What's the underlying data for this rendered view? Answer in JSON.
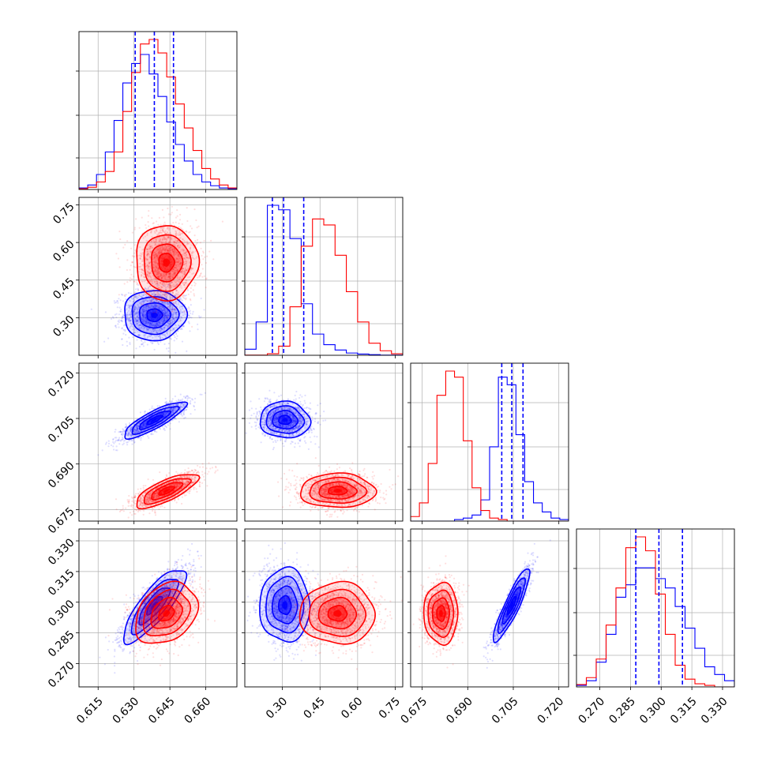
{
  "chart_data": {
    "type": "corner",
    "parameters": [
      {
        "id": "p0",
        "range": [
          0.607,
          0.673
        ],
        "ticks": [
          "0.615",
          "0.630",
          "0.645",
          "0.660"
        ],
        "quantiles_blue": [
          0.6305,
          0.6385,
          0.6465
        ],
        "hist_blue": [
          0.01,
          0.03,
          0.1,
          0.25,
          0.46,
          0.71,
          0.84,
          0.9,
          0.77,
          0.62,
          0.45,
          0.3,
          0.19,
          0.1,
          0.05,
          0.025,
          0.01,
          0.005
        ],
        "hist_red": [
          0.005,
          0.015,
          0.05,
          0.12,
          0.25,
          0.52,
          0.78,
          0.97,
          1.0,
          0.91,
          0.75,
          0.57,
          0.41,
          0.26,
          0.14,
          0.07,
          0.03,
          0.01
        ]
      },
      {
        "id": "p1",
        "range": [
          0.15,
          0.78
        ],
        "ticks": [
          "0.30",
          "0.45",
          "0.60",
          "0.75"
        ],
        "quantiles_blue": [
          0.26,
          0.305,
          0.385
        ],
        "hist_blue": [
          0.04,
          0.22,
          0.99,
          0.96,
          0.77,
          0.34,
          0.14,
          0.07,
          0.035,
          0.015,
          0.008,
          0.004,
          0.001,
          0.001
        ],
        "hist_red": [
          0.001,
          0.001,
          0.01,
          0.06,
          0.32,
          0.72,
          0.9,
          0.86,
          0.66,
          0.42,
          0.22,
          0.08,
          0.03,
          0.01
        ]
      },
      {
        "id": "p2",
        "range": [
          0.6712,
          0.7232
        ],
        "ticks": [
          "0.675",
          "0.690",
          "0.705",
          "0.720"
        ],
        "quantiles_blue": [
          0.7012,
          0.7045,
          0.7082
        ],
        "hist_blue": [
          0.0,
          0.0,
          0.0,
          0.0,
          0.0,
          0.01,
          0.02,
          0.04,
          0.14,
          0.49,
          0.95,
          0.9,
          0.57,
          0.26,
          0.12,
          0.06,
          0.02,
          0.01
        ],
        "hist_red": [
          0.03,
          0.12,
          0.38,
          0.83,
          0.99,
          0.95,
          0.53,
          0.22,
          0.07,
          0.02,
          0.01,
          0.0,
          0.0,
          0.0,
          0.0,
          0.0,
          0.0,
          0.0
        ]
      },
      {
        "id": "p3",
        "range": [
          0.2586,
          0.3358
        ],
        "ticks": [
          "0.270",
          "0.285",
          "0.300",
          "0.315",
          "0.330"
        ],
        "quantiles_blue": [
          0.2876,
          0.2989,
          0.3104
        ],
        "hist_blue": [
          0.01,
          0.04,
          0.16,
          0.34,
          0.58,
          0.66,
          0.77,
          0.77,
          0.7,
          0.64,
          0.52,
          0.38,
          0.25,
          0.13,
          0.08,
          0.04
        ],
        "hist_red": [
          0.015,
          0.06,
          0.18,
          0.4,
          0.64,
          0.9,
          0.97,
          0.88,
          0.6,
          0.34,
          0.14,
          0.05,
          0.02,
          0.01,
          0.0,
          0.0
        ]
      }
    ],
    "samples": {
      "blue": {
        "mean": [
          0.6385,
          0.31,
          0.7045,
          0.2985
        ],
        "std": [
          0.0065,
          0.05,
          0.003,
          0.009
        ]
      },
      "red": {
        "mean": [
          0.6435,
          0.52,
          0.6812,
          0.2945
        ],
        "std": [
          0.0065,
          0.075,
          0.0028,
          0.0075
        ]
      }
    },
    "correlations": {
      "blue": {
        "p0p1": 0.0,
        "p0p2": 0.85,
        "p0p3": 0.82,
        "p1p2": -0.05,
        "p1p3": 0.0,
        "p2p3": 0.9
      },
      "red": {
        "p0p1": 0.0,
        "p0p2": 0.75,
        "p0p3": 0.3,
        "p1p2": 0.0,
        "p1p3": 0.0,
        "p2p3": 0.0
      }
    },
    "colors": {
      "blue": "#0000ff",
      "red": "#ff0000",
      "quantile_line": "#0000ff",
      "grid": "#b0b0b0"
    },
    "grid": true,
    "contour_levels_sigma": [
      0.5,
      1.0,
      1.5,
      2.0
    ],
    "xlabel": "",
    "ylabel": "",
    "title": ""
  }
}
